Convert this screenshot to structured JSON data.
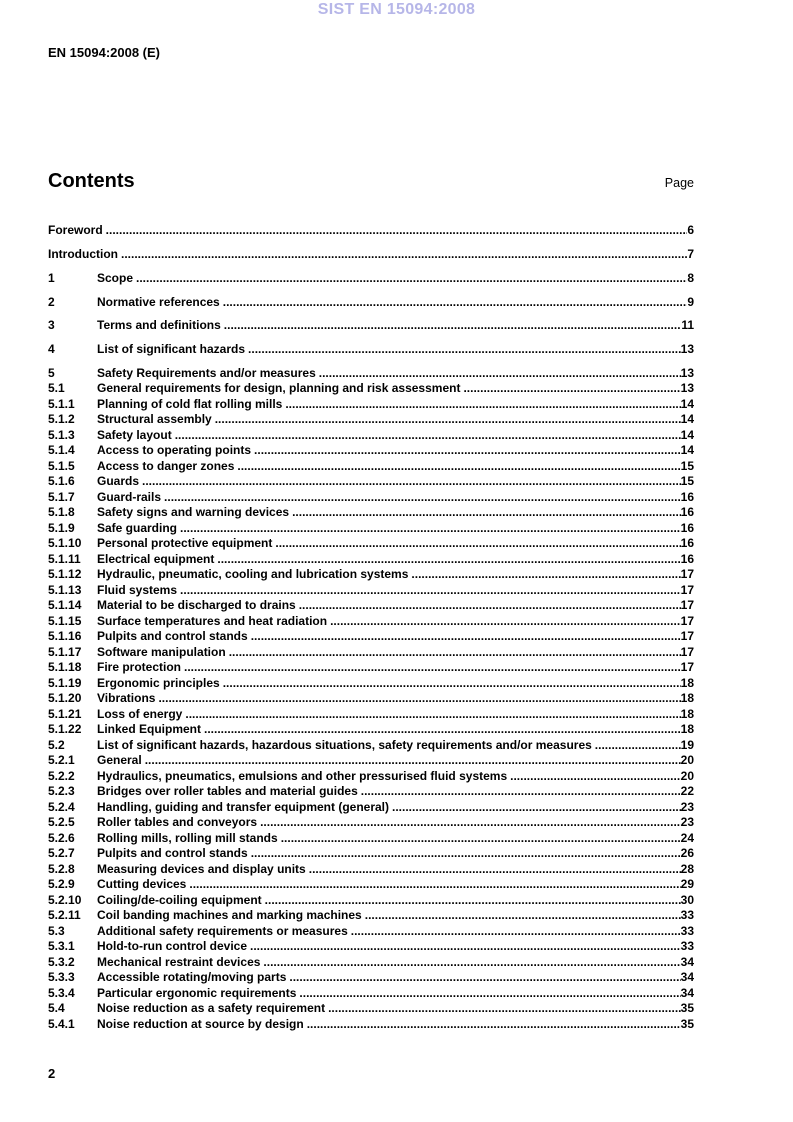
{
  "watermark": "SIST EN 15094:2008",
  "doc_ref": "EN 15094:2008 (E)",
  "contents": {
    "title": "Contents",
    "page_label": "Page"
  },
  "footer": {
    "page_number": "2"
  },
  "colors": {
    "watermark": "#b6b6e8",
    "text": "#000000"
  },
  "toc": {
    "entries": [
      {
        "num": "",
        "title": "Foreword",
        "page": "6",
        "gap": true
      },
      {
        "num": "",
        "title": "Introduction",
        "page": "7",
        "gap": true
      },
      {
        "num": "1",
        "title": "Scope",
        "page": "8",
        "gap": true
      },
      {
        "num": "2",
        "title": "Normative references",
        "page": "9",
        "gap": true
      },
      {
        "num": "3",
        "title": "Terms and definitions",
        "page": "11",
        "gap": true
      },
      {
        "num": "4",
        "title": "List of significant hazards",
        "page": "13",
        "gap": true
      },
      {
        "num": "5",
        "title": "Safety Requirements and/or measures",
        "page": "13",
        "gap": true
      },
      {
        "num": "5.1",
        "title": "General requirements for design, planning and risk assessment",
        "page": "13"
      },
      {
        "num": "5.1.1",
        "title": "Planning of cold flat rolling mills",
        "page": "14"
      },
      {
        "num": "5.1.2",
        "title": "Structural assembly",
        "page": "14"
      },
      {
        "num": "5.1.3",
        "title": "Safety layout",
        "page": "14"
      },
      {
        "num": "5.1.4",
        "title": "Access to operating points",
        "page": "14"
      },
      {
        "num": "5.1.5",
        "title": "Access to danger zones",
        "page": "15"
      },
      {
        "num": "5.1.6",
        "title": "Guards",
        "page": "15"
      },
      {
        "num": "5.1.7",
        "title": "Guard-rails",
        "page": "16"
      },
      {
        "num": "5.1.8",
        "title": "Safety signs and warning devices",
        "page": "16"
      },
      {
        "num": "5.1.9",
        "title": "Safe guarding",
        "page": "16"
      },
      {
        "num": "5.1.10",
        "title": "Personal protective equipment",
        "page": "16"
      },
      {
        "num": "5.1.11",
        "title": "Electrical equipment",
        "page": "16"
      },
      {
        "num": "5.1.12",
        "title": "Hydraulic, pneumatic, cooling and lubrication systems",
        "page": "17"
      },
      {
        "num": "5.1.13",
        "title": "Fluid systems",
        "page": "17"
      },
      {
        "num": "5.1.14",
        "title": "Material to be discharged to drains",
        "page": "17"
      },
      {
        "num": "5.1.15",
        "title": "Surface temperatures and heat radiation",
        "page": "17"
      },
      {
        "num": "5.1.16",
        "title": "Pulpits and control stands",
        "page": "17"
      },
      {
        "num": "5.1.17",
        "title": "Software manipulation",
        "page": "17"
      },
      {
        "num": "5.1.18",
        "title": "Fire protection",
        "page": "17"
      },
      {
        "num": "5.1.19",
        "title": "Ergonomic principles",
        "page": "18"
      },
      {
        "num": "5.1.20",
        "title": "Vibrations",
        "page": "18"
      },
      {
        "num": "5.1.21",
        "title": "Loss of energy",
        "page": "18"
      },
      {
        "num": "5.1.22",
        "title": "Linked Equipment",
        "page": "18"
      },
      {
        "num": "5.2",
        "title": "List of significant hazards, hazardous situations, safety requirements and/or measures",
        "page": "19"
      },
      {
        "num": "5.2.1",
        "title": "General",
        "page": "20"
      },
      {
        "num": "5.2.2",
        "title": "Hydraulics, pneumatics, emulsions and other pressurised fluid systems",
        "page": "20"
      },
      {
        "num": "5.2.3",
        "title": "Bridges over roller tables and material guides",
        "page": "22"
      },
      {
        "num": "5.2.4",
        "title": "Handling, guiding and transfer equipment (general)",
        "page": "23"
      },
      {
        "num": "5.2.5",
        "title": "Roller tables and conveyors",
        "page": "23"
      },
      {
        "num": "5.2.6",
        "title": "Rolling mills, rolling mill stands",
        "page": "24"
      },
      {
        "num": "5.2.7",
        "title": "Pulpits and control stands",
        "page": "26"
      },
      {
        "num": "5.2.8",
        "title": "Measuring devices and display units",
        "page": "28"
      },
      {
        "num": "5.2.9",
        "title": "Cutting devices",
        "page": "29"
      },
      {
        "num": "5.2.10",
        "title": "Coiling/de-coiling equipment",
        "page": "30"
      },
      {
        "num": "5.2.11",
        "title": "Coil banding machines and marking machines",
        "page": "33"
      },
      {
        "num": "5.3",
        "title": "Additional safety requirements or measures",
        "page": "33"
      },
      {
        "num": "5.3.1",
        "title": "Hold-to-run control device",
        "page": "33"
      },
      {
        "num": "5.3.2",
        "title": "Mechanical restraint devices",
        "page": "34"
      },
      {
        "num": "5.3.3",
        "title": "Accessible rotating/moving parts",
        "page": "34"
      },
      {
        "num": "5.3.4",
        "title": "Particular ergonomic requirements",
        "page": "34"
      },
      {
        "num": "5.4",
        "title": "Noise reduction as a safety requirement",
        "page": "35"
      },
      {
        "num": "5.4.1",
        "title": "Noise reduction at source by design",
        "page": "35"
      }
    ]
  }
}
